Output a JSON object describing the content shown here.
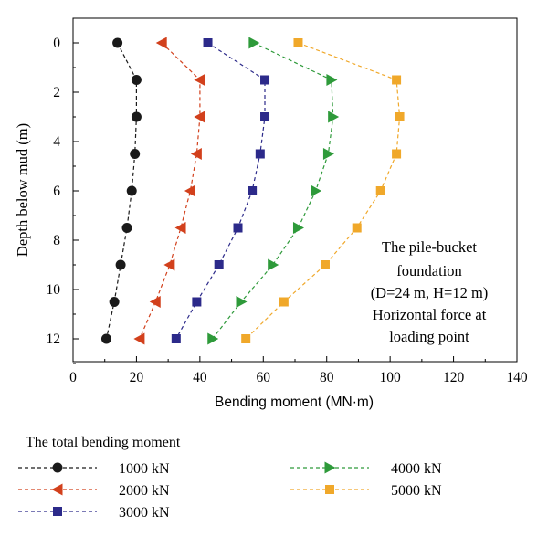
{
  "chart_data": {
    "type": "line",
    "xlabel": "Bending moment (MN·m)",
    "ylabel": "Depth below mud (m)",
    "xlim": [
      0,
      140
    ],
    "ylim": [
      0,
      13
    ],
    "y_inverted": true,
    "x_ticks": [
      "0",
      "20",
      "40",
      "60",
      "80",
      "100",
      "120",
      "140"
    ],
    "y_ticks": [
      "0",
      "2",
      "4",
      "6",
      "8",
      "10",
      "12"
    ],
    "grid": false,
    "legend_title": "The total bending moment",
    "legend_position": "bottom",
    "annotation": [
      "The pile-bucket",
      "foundation",
      "(D=24 m, H=12 m)",
      "Horizontal force at",
      "loading point"
    ],
    "series": [
      {
        "name": "1000 kN",
        "color": "#1a1a1a",
        "marker": "circle",
        "points": [
          [
            14,
            0
          ],
          [
            20,
            1.5
          ],
          [
            20,
            3
          ],
          [
            19.5,
            4.5
          ],
          [
            18.5,
            6
          ],
          [
            17,
            7.5
          ],
          [
            15,
            9
          ],
          [
            13,
            10.5
          ],
          [
            10.5,
            12
          ]
        ]
      },
      {
        "name": "2000 kN",
        "color": "#d2401c",
        "marker": "triangle-left",
        "points": [
          [
            28,
            0
          ],
          [
            40,
            1.5
          ],
          [
            40,
            3
          ],
          [
            39,
            4.5
          ],
          [
            37,
            6
          ],
          [
            34,
            7.5
          ],
          [
            30.5,
            9
          ],
          [
            26,
            10.5
          ],
          [
            21,
            12
          ]
        ]
      },
      {
        "name": "3000 kN",
        "color": "#2c2a8a",
        "marker": "square",
        "points": [
          [
            42.5,
            0
          ],
          [
            60.5,
            1.5
          ],
          [
            60.5,
            3
          ],
          [
            59,
            4.5
          ],
          [
            56.5,
            6
          ],
          [
            52,
            7.5
          ],
          [
            46,
            9
          ],
          [
            39,
            10.5
          ],
          [
            32.5,
            12
          ]
        ]
      },
      {
        "name": "4000 kN",
        "color": "#2e9a3a",
        "marker": "triangle-right",
        "points": [
          [
            57,
            0
          ],
          [
            81.5,
            1.5
          ],
          [
            82,
            3
          ],
          [
            80.5,
            4.5
          ],
          [
            76.5,
            6
          ],
          [
            71,
            7.5
          ],
          [
            63,
            9
          ],
          [
            53,
            10.5
          ],
          [
            44,
            12
          ]
        ]
      },
      {
        "name": "5000 kN",
        "color": "#f0a82a",
        "marker": "square",
        "points": [
          [
            71,
            0
          ],
          [
            102,
            1.5
          ],
          [
            103,
            3
          ],
          [
            102,
            4.5
          ],
          [
            97,
            6
          ],
          [
            89.5,
            7.5
          ],
          [
            79.5,
            9
          ],
          [
            66.5,
            10.5
          ],
          [
            54.5,
            12
          ]
        ]
      }
    ]
  }
}
